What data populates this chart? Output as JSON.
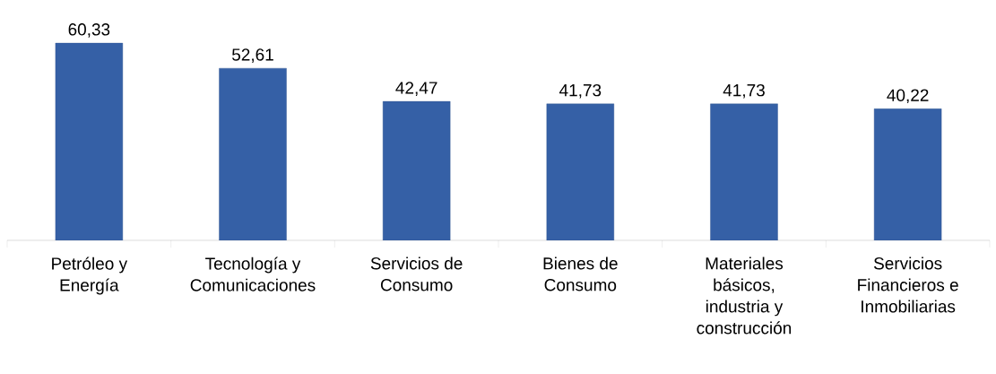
{
  "chart_data": {
    "type": "bar",
    "categories": [
      "Petróleo y Energía",
      "Tecnología y Comunicaciones",
      "Servicios de Consumo",
      "Bienes de Consumo",
      "Materiales básicos, industria y construcción",
      "Servicios Financieros e Inmobiliarias"
    ],
    "values": [
      60.33,
      52.61,
      42.47,
      41.73,
      41.73,
      40.22
    ],
    "value_labels": [
      "60,33",
      "52,61",
      "42,47",
      "41,73",
      "41,73",
      "40,22"
    ],
    "color": "#3560a6"
  }
}
